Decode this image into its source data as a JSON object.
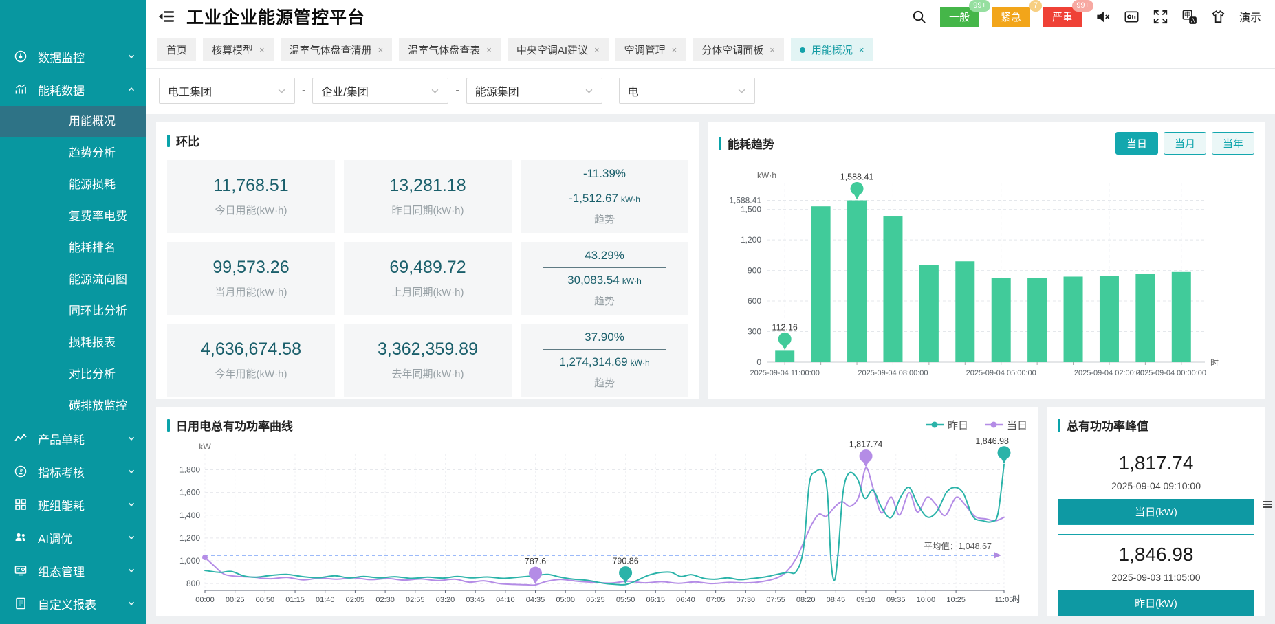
{
  "app": {
    "title": "工业企业能源管控平台"
  },
  "header": {
    "user": "演示",
    "alerts": [
      {
        "label": "一般",
        "count": "99+",
        "color": "#45B649",
        "badge_bg": "#96DFA0"
      },
      {
        "label": "紧急",
        "count": "7",
        "color": "#F2A51A",
        "badge_bg": "#F7CF82"
      },
      {
        "label": "严重",
        "count": "99+",
        "color": "#EF4136",
        "badge_bg": "#F7A9A2"
      }
    ],
    "icons": [
      "search-icon",
      "mute-icon",
      "screen-cast-icon",
      "fullscreen-icon",
      "translate-icon",
      "theme-icon"
    ]
  },
  "ui": {
    "close_glyph": "×"
  },
  "sidebar": {
    "items": [
      {
        "key": "data-monitoring",
        "label": "数据监控",
        "icon": "gauge",
        "expandable": true,
        "expanded": false
      },
      {
        "key": "energy-data",
        "label": "能耗数据",
        "icon": "chart",
        "expandable": true,
        "expanded": true,
        "active_child": 0,
        "children": [
          {
            "key": "energy-overview",
            "label": "用能概况"
          },
          {
            "key": "trend-analysis",
            "label": "趋势分析"
          },
          {
            "key": "energy-loss",
            "label": "能源损耗"
          },
          {
            "key": "multi-rate-fee",
            "label": "复费率电费"
          },
          {
            "key": "energy-ranking",
            "label": "能耗排名"
          },
          {
            "key": "energy-flow",
            "label": "能源流向图"
          },
          {
            "key": "period-compare",
            "label": "同环比分析"
          },
          {
            "key": "loss-report",
            "label": "损耗报表"
          },
          {
            "key": "compare-analysis",
            "label": "对比分析"
          },
          {
            "key": "carbon-monitoring",
            "label": "碳排放监控"
          }
        ]
      },
      {
        "key": "product-unit",
        "label": "产品单耗",
        "icon": "zigzag",
        "expandable": true,
        "expanded": false
      },
      {
        "key": "kpi-assessment",
        "label": "指标考核",
        "icon": "target",
        "expandable": true,
        "expanded": false
      },
      {
        "key": "team-energy",
        "label": "班组能耗",
        "icon": "grid",
        "expandable": true,
        "expanded": false
      },
      {
        "key": "ai-tuning",
        "label": "AI调优",
        "icon": "users",
        "expandable": true,
        "expanded": false
      },
      {
        "key": "scada-management",
        "label": "组态管理",
        "icon": "screen",
        "expandable": true,
        "expanded": false
      },
      {
        "key": "custom-report",
        "label": "自定义报表",
        "icon": "report",
        "expandable": true,
        "expanded": false
      }
    ]
  },
  "tabs": [
    {
      "label": "首页",
      "closable": false,
      "active": false
    },
    {
      "label": "核算模型",
      "closable": true,
      "active": false
    },
    {
      "label": "温室气体盘查清册",
      "closable": true,
      "active": false
    },
    {
      "label": "温室气体盘查表",
      "closable": true,
      "active": false
    },
    {
      "label": "中央空调AI建议",
      "closable": true,
      "active": false
    },
    {
      "label": "空调管理",
      "closable": true,
      "active": false
    },
    {
      "label": "分体空调面板",
      "closable": true,
      "active": false
    },
    {
      "label": "用能概况",
      "closable": true,
      "active": true
    }
  ],
  "filters": {
    "separator": "-",
    "selects": [
      "电工集团",
      "企业/集团",
      "能源集团",
      "电"
    ]
  },
  "huanbi": {
    "title": "环比",
    "stats": [
      {
        "value": "11,768.51",
        "label": "今日用能(kW·h)"
      },
      {
        "value": "13,281.18",
        "label": "昨日同期(kW·h)"
      },
      {
        "value": "99,573.26",
        "label": "当月用能(kW·h)"
      },
      {
        "value": "69,489.72",
        "label": "上月同期(kW·h)"
      },
      {
        "value": "4,636,674.58",
        "label": "今年用能(kW·h)"
      },
      {
        "value": "3,362,359.89",
        "label": "去年同期(kW·h)"
      }
    ],
    "trends": [
      {
        "percent": "-11.39%",
        "value": "-1,512.67",
        "unit": "kW·h",
        "label": "趋势"
      },
      {
        "percent": "43.29%",
        "value": "30,083.54",
        "unit": "kW·h",
        "label": "趋势"
      },
      {
        "percent": "37.90%",
        "value": "1,274,314.69",
        "unit": "kW·h",
        "label": "趋势"
      }
    ]
  },
  "trend_panel": {
    "title": "能耗趋势",
    "buttons": [
      "当日",
      "当月",
      "当年"
    ],
    "active_index": 0
  },
  "power_curve": {
    "title": "日用电总有功功率曲线"
  },
  "peak_panel": {
    "title": "总有功功率峰值",
    "cards": [
      {
        "value": "1,817.74",
        "time": "2025-09-04 09:10:00",
        "label": "当日(kW)"
      },
      {
        "value": "1,846.98",
        "time": "2025-09-03 11:05:00",
        "label": "昨日(kW)"
      }
    ]
  },
  "colors": {
    "sidebar_bg": "#0897A0",
    "sidebar_active": "#2E7386",
    "accent": "#0AA3AA",
    "bar_color": "#41CB9A",
    "series_yesterday": "#2BB3A9",
    "series_today": "#B48CE6",
    "avg_line": "#7BA3F7"
  },
  "chart_data": [
    {
      "id": "energy_trend",
      "type": "bar",
      "title": "能耗趋势",
      "y_unit": "kW·h",
      "x_unit": "时",
      "grid": true,
      "color": "#41CB9A",
      "categories": [
        "11:00",
        "10:00",
        "09:00",
        "08:00",
        "07:00",
        "06:00",
        "05:00",
        "04:00",
        "03:00",
        "02:00",
        "01:00",
        "00:00"
      ],
      "values": [
        112.16,
        1530,
        1588.41,
        1430,
        955,
        990,
        825,
        825,
        840,
        845,
        865,
        885
      ],
      "ylim": [
        0,
        1700
      ],
      "yticks": [
        {
          "v": 1588.41,
          "label": "1,588.41"
        },
        {
          "v": 1500,
          "label": "1,500"
        },
        {
          "v": 1200,
          "label": "1,200"
        },
        {
          "v": 900,
          "label": "900"
        },
        {
          "v": 600,
          "label": "600"
        },
        {
          "v": 300,
          "label": "300"
        },
        {
          "v": 0,
          "label": "0"
        }
      ],
      "xticks": [
        {
          "slot": 0,
          "label": "2025-09-04 11:00:00"
        },
        {
          "slot": 3,
          "label": "2025-09-04 08:00:00"
        },
        {
          "slot": 6,
          "label": "2025-09-04 05:00:00"
        },
        {
          "slot": 9,
          "label": "2025-09-04 02:00:00"
        },
        {
          "slot": 11,
          "label": "2025-09-04 00:00:00"
        }
      ],
      "marked": [
        {
          "index": 0,
          "label": "112.16"
        },
        {
          "index": 2,
          "label": "1,588.41"
        }
      ]
    },
    {
      "id": "daily_power",
      "type": "line",
      "title": "日用电总有功功率曲线",
      "y_unit": "kW",
      "x_unit": "时",
      "grid": true,
      "ylim": [
        740,
        1900
      ],
      "yticks": [
        {
          "v": 1800,
          "label": "1,800"
        },
        {
          "v": 1600,
          "label": "1,600"
        },
        {
          "v": 1400,
          "label": "1,400"
        },
        {
          "v": 1200,
          "label": "1,200"
        },
        {
          "v": 1000,
          "label": "1,000"
        },
        {
          "v": 800,
          "label": "800"
        }
      ],
      "xticks": [
        {
          "t": 0,
          "label": "00:00"
        },
        {
          "t": 25,
          "label": "00:25"
        },
        {
          "t": 50,
          "label": "00:50"
        },
        {
          "t": 75,
          "label": "01:15"
        },
        {
          "t": 100,
          "label": "01:40"
        },
        {
          "t": 125,
          "label": "02:05"
        },
        {
          "t": 150,
          "label": "02:30"
        },
        {
          "t": 175,
          "label": "02:55"
        },
        {
          "t": 200,
          "label": "03:20"
        },
        {
          "t": 225,
          "label": "03:45"
        },
        {
          "t": 250,
          "label": "04:10"
        },
        {
          "t": 275,
          "label": "04:35"
        },
        {
          "t": 300,
          "label": "05:00"
        },
        {
          "t": 325,
          "label": "05:25"
        },
        {
          "t": 350,
          "label": "05:50"
        },
        {
          "t": 375,
          "label": "06:15"
        },
        {
          "t": 400,
          "label": "06:40"
        },
        {
          "t": 425,
          "label": "07:05"
        },
        {
          "t": 450,
          "label": "07:30"
        },
        {
          "t": 475,
          "label": "07:55"
        },
        {
          "t": 500,
          "label": "08:20"
        },
        {
          "t": 525,
          "label": "08:45"
        },
        {
          "t": 550,
          "label": "09:10"
        },
        {
          "t": 575,
          "label": "09:35"
        },
        {
          "t": 600,
          "label": "10:00"
        },
        {
          "t": 625,
          "label": "10:25"
        },
        {
          "t": 665,
          "label": "11:05"
        }
      ],
      "avg": {
        "v": 1048.67,
        "label": "平均值：1,048.67"
      },
      "series": [
        {
          "name": "昨日",
          "color": "#2BB3A9",
          "points": [
            [
              0,
              915
            ],
            [
              12,
              898
            ],
            [
              22,
              906
            ],
            [
              32,
              868
            ],
            [
              42,
              856
            ],
            [
              55,
              872
            ],
            [
              68,
              880
            ],
            [
              82,
              860
            ],
            [
              95,
              852
            ],
            [
              108,
              868
            ],
            [
              120,
              850
            ],
            [
              132,
              862
            ],
            [
              145,
              850
            ],
            [
              158,
              860
            ],
            [
              172,
              846
            ],
            [
              185,
              856
            ],
            [
              198,
              848
            ],
            [
              210,
              862
            ],
            [
              222,
              850
            ],
            [
              235,
              858
            ],
            [
              248,
              846
            ],
            [
              260,
              855
            ],
            [
              272,
              866
            ],
            [
              285,
              880
            ],
            [
              295,
              858
            ],
            [
              305,
              840
            ],
            [
              318,
              828
            ],
            [
              332,
              802
            ],
            [
              342,
              792
            ],
            [
              350,
              790.86
            ],
            [
              358,
              820
            ],
            [
              368,
              868
            ],
            [
              378,
              895
            ],
            [
              388,
              898
            ],
            [
              396,
              862
            ],
            [
              405,
              878
            ],
            [
              415,
              846
            ],
            [
              425,
              838
            ],
            [
              435,
              850
            ],
            [
              445,
              834
            ],
            [
              455,
              844
            ],
            [
              465,
              856
            ],
            [
              475,
              878
            ],
            [
              485,
              898
            ],
            [
              492,
              905
            ],
            [
              498,
              1100
            ],
            [
              503,
              1680
            ],
            [
              508,
              1780
            ],
            [
              514,
              1788
            ],
            [
              518,
              1600
            ],
            [
              521,
              1000
            ],
            [
              524,
              830
            ],
            [
              527,
              1080
            ],
            [
              531,
              1600
            ],
            [
              536,
              1770
            ],
            [
              543,
              1720
            ],
            [
              549,
              1550
            ],
            [
              556,
              1620
            ],
            [
              563,
              1470
            ],
            [
              571,
              1380
            ],
            [
              579,
              1560
            ],
            [
              586,
              1645
            ],
            [
              593,
              1500
            ],
            [
              601,
              1385
            ],
            [
              609,
              1430
            ],
            [
              617,
              1600
            ],
            [
              624,
              1645
            ],
            [
              631,
              1595
            ],
            [
              639,
              1390
            ],
            [
              647,
              1352
            ],
            [
              655,
              1345
            ],
            [
              660,
              1420
            ],
            [
              665,
              1846.98
            ]
          ]
        },
        {
          "name": "当日",
          "color": "#B48CE6",
          "points": [
            [
              0,
              1030
            ],
            [
              8,
              952
            ],
            [
              16,
              882
            ],
            [
              26,
              864
            ],
            [
              40,
              856
            ],
            [
              54,
              842
            ],
            [
              68,
              854
            ],
            [
              82,
              832
            ],
            [
              96,
              848
            ],
            [
              110,
              838
            ],
            [
              124,
              850
            ],
            [
              138,
              834
            ],
            [
              152,
              844
            ],
            [
              166,
              830
            ],
            [
              180,
              840
            ],
            [
              194,
              826
            ],
            [
              208,
              838
            ],
            [
              220,
              812
            ],
            [
              232,
              824
            ],
            [
              245,
              800
            ],
            [
              258,
              792
            ],
            [
              268,
              789
            ],
            [
              275,
              787.6
            ],
            [
              284,
              818
            ],
            [
              296,
              836
            ],
            [
              310,
              820
            ],
            [
              324,
              810
            ],
            [
              338,
              804
            ],
            [
              352,
              820
            ],
            [
              366,
              806
            ],
            [
              380,
              816
            ],
            [
              394,
              802
            ],
            [
              408,
              814
            ],
            [
              422,
              800
            ],
            [
              436,
              810
            ],
            [
              450,
              806
            ],
            [
              464,
              818
            ],
            [
              476,
              850
            ],
            [
              484,
              905
            ],
            [
              492,
              1020
            ],
            [
              499,
              1180
            ],
            [
              505,
              1320
            ],
            [
              511,
              1408
            ],
            [
              517,
              1390
            ],
            [
              523,
              1460
            ],
            [
              530,
              1518
            ],
            [
              537,
              1478
            ],
            [
              544,
              1560
            ],
            [
              550,
              1817.74
            ],
            [
              556,
              1640
            ],
            [
              563,
              1420
            ],
            [
              571,
              1560
            ],
            [
              578,
              1402
            ],
            [
              586,
              1598
            ],
            [
              593,
              1428
            ],
            [
              601,
              1558
            ],
            [
              608,
              1498
            ],
            [
              616,
              1398
            ],
            [
              625,
              1556
            ],
            [
              632,
              1498
            ],
            [
              641,
              1388
            ],
            [
              650,
              1368
            ],
            [
              658,
              1352
            ],
            [
              665,
              1382
            ]
          ]
        }
      ],
      "pins": [
        {
          "series": 1,
          "t": 550,
          "v": 1817.74,
          "label": "1,817.74",
          "anchor": "middle"
        },
        {
          "series": 0,
          "t": 665,
          "v": 1846.98,
          "label": "1,846.98",
          "anchor": "end"
        },
        {
          "series": 1,
          "t": 275,
          "v": 787.6,
          "label": "787.6",
          "anchor": "middle"
        },
        {
          "series": 0,
          "t": 350,
          "v": 790.86,
          "label": "790.86",
          "anchor": "middle"
        }
      ],
      "legend_position": "top-right"
    }
  ]
}
